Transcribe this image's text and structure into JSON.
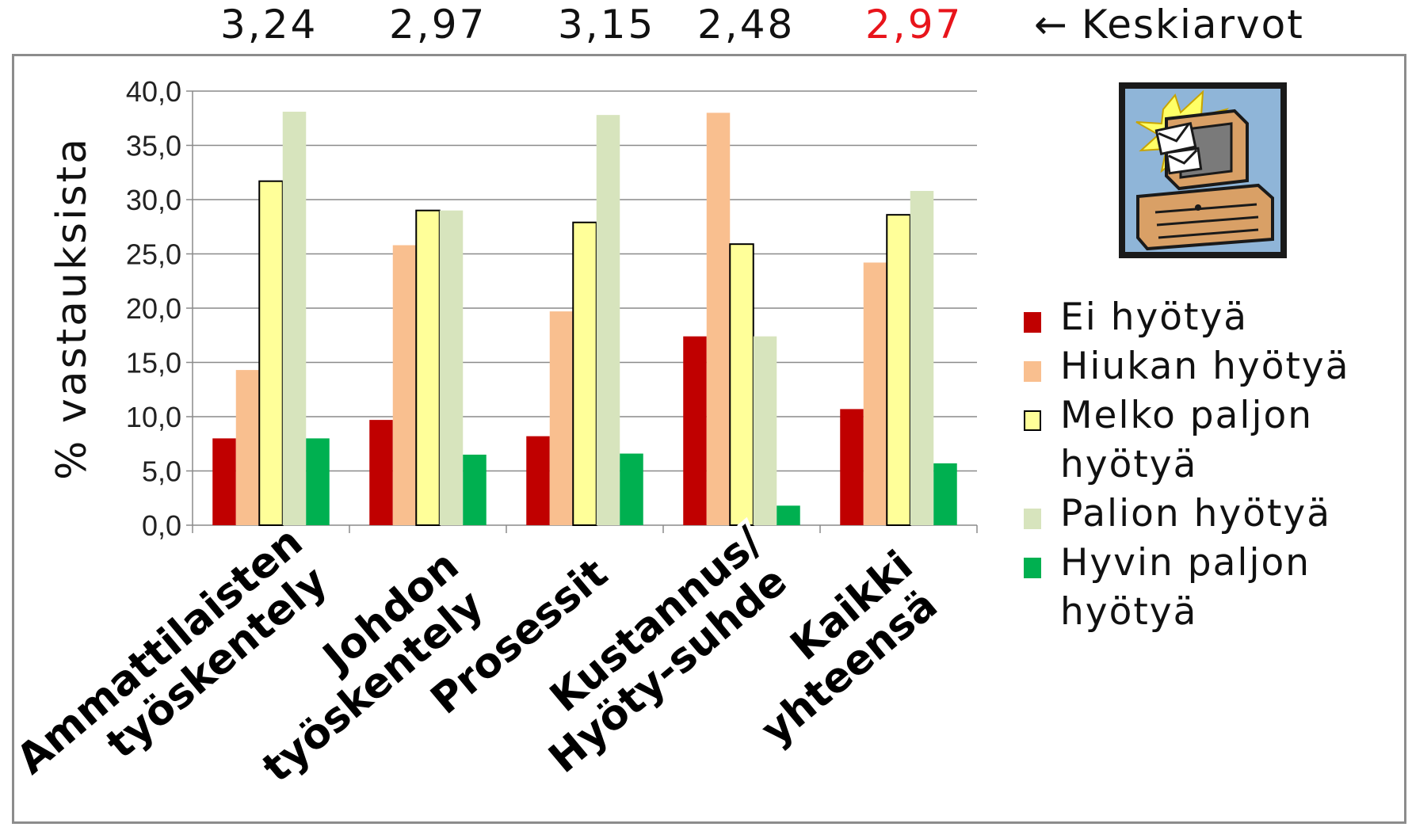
{
  "means": {
    "values": [
      {
        "text": "3,24",
        "color": "#111111"
      },
      {
        "text": "2,97",
        "color": "#111111"
      },
      {
        "text": "3,15",
        "color": "#111111"
      },
      {
        "text": "2,48",
        "color": "#111111"
      },
      {
        "text": "2,97",
        "color": "#e8141b"
      }
    ],
    "arrow": "←",
    "caption": "Keskiarvot"
  },
  "chart_data": {
    "type": "bar",
    "ylabel": "% vastauksista",
    "ylim": [
      0,
      40
    ],
    "yticks": [
      "0,0",
      "5,0",
      "10,0",
      "15,0",
      "20,0",
      "25,0",
      "30,0",
      "35,0",
      "40,0"
    ],
    "grid": true,
    "legend_position": "right",
    "categories": [
      [
        "Ammattilaisten",
        "työskentely"
      ],
      [
        "Johdon",
        "työskentely"
      ],
      [
        "Prosessit"
      ],
      [
        "Kustannus/",
        "Hyöty-suhde"
      ],
      [
        "Kaikki",
        "yhteensä"
      ]
    ],
    "series": [
      {
        "name": "Ei hyötyä",
        "color": "#c00000",
        "values": [
          8.0,
          9.7,
          8.2,
          17.4,
          10.7
        ]
      },
      {
        "name": "Hiukan hyötyä",
        "color": "#f9bf8f",
        "values": [
          14.3,
          25.8,
          19.7,
          38.0,
          24.2
        ]
      },
      {
        "name": "Melko paljon hyötyä",
        "color": "#ffff99",
        "outline": true,
        "values": [
          31.7,
          29.0,
          27.9,
          25.9,
          28.6
        ]
      },
      {
        "name": "Paljon hyötyä",
        "color": "#d7e4bd",
        "values": [
          38.1,
          29.0,
          37.8,
          17.4,
          30.8
        ]
      },
      {
        "name": "Hyvin paljon hyötyä",
        "color": "#00b050",
        "values": [
          8.0,
          6.5,
          6.6,
          1.8,
          5.7
        ]
      }
    ]
  },
  "legend": {
    "items": [
      {
        "label": "Ei hyötyä",
        "color": "#c00000"
      },
      {
        "label": "Hiukan hyötyä",
        "color": "#f9bf8f"
      },
      {
        "label": "Melko paljon hyötyä",
        "color": "#ffff99"
      },
      {
        "label": "Palion hyötyä",
        "color": "#d7e4bd"
      },
      {
        "label": "Hyvin paljon hyötyä",
        "color": "#00b050"
      }
    ]
  },
  "clipart": {
    "icon": "computer-mail-icon"
  }
}
